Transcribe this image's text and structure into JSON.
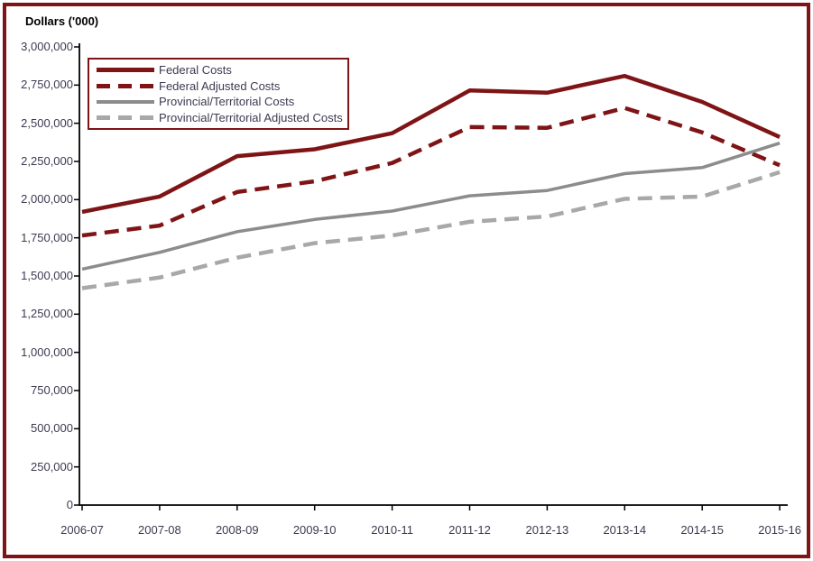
{
  "chart_data": {
    "type": "line",
    "title": "Dollars ('000)",
    "xlabel": "",
    "ylabel": "Dollars ('000)",
    "grid": false,
    "legend_position": "top-left",
    "ylim": [
      0,
      3000000
    ],
    "ytick_step": 250000,
    "yticks": [
      "0",
      "250,000",
      "500,000",
      "750,000",
      "1,000,000",
      "1,250,000",
      "1,500,000",
      "1,750,000",
      "2,000,000",
      "2,250,000",
      "2,500,000",
      "2,750,000",
      "3,000,000"
    ],
    "categories": [
      "2006-07",
      "2007-08",
      "2008-09",
      "2009-10",
      "2010-11",
      "2011-12",
      "2012-13",
      "2013-14",
      "2014-15",
      "2015-16"
    ],
    "series": [
      {
        "name": "Federal Costs",
        "color": "#7f1416",
        "line_style": "solid",
        "values": [
          1920000,
          2020000,
          2285000,
          2330000,
          2435000,
          2715000,
          2700000,
          2810000,
          2640000,
          2410000
        ]
      },
      {
        "name": "Federal Adjusted Costs",
        "color": "#7f1416",
        "line_style": "dashed",
        "values": [
          1765000,
          1830000,
          2050000,
          2120000,
          2240000,
          2475000,
          2470000,
          2600000,
          2440000,
          2225000
        ]
      },
      {
        "name": "Provincial/Territorial Costs",
        "color": "#8c8c8c",
        "line_style": "solid",
        "values": [
          1545000,
          1655000,
          1790000,
          1870000,
          1925000,
          2025000,
          2060000,
          2170000,
          2210000,
          2370000
        ]
      },
      {
        "name": "Provincial/Territorial Adjusted Costs",
        "color": "#a8a8a8",
        "line_style": "dashed",
        "values": [
          1420000,
          1490000,
          1620000,
          1715000,
          1765000,
          1855000,
          1890000,
          2005000,
          2020000,
          2180000
        ]
      }
    ],
    "colors": {
      "frame_border": "#7f1416",
      "axis": "#000000",
      "tick_labels": "#3b3b52"
    }
  }
}
